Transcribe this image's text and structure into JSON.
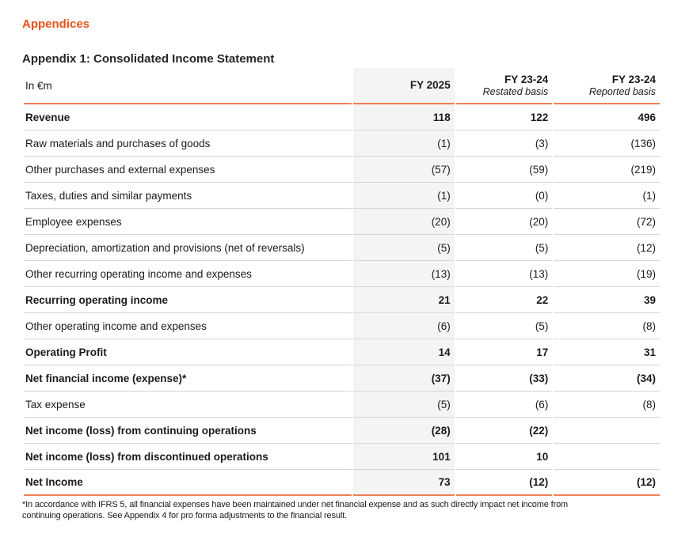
{
  "page": {
    "section_title": "Appendices",
    "table_title": "Appendix 1: Consolidated Income Statement"
  },
  "colors": {
    "accent_orange": "#E8511A",
    "rule_orange": "#EE7F55",
    "row_divider_gray": "#D6D6D6",
    "highlight_column_bg": "#F4F4F3"
  },
  "table": {
    "unit_label": "In €m",
    "columns": [
      {
        "label": "FY 2025",
        "sublabel": ""
      },
      {
        "label": "FY 23-24",
        "sublabel": "Restated basis"
      },
      {
        "label": "FY 23-24",
        "sublabel": "Reported basis"
      }
    ],
    "rows": [
      {
        "label": "Revenue",
        "fy2025": "118",
        "restated": "122",
        "reported": "496",
        "bold": true
      },
      {
        "label": "Raw materials and purchases of goods",
        "fy2025": "(1)",
        "restated": "(3)",
        "reported": "(136)",
        "bold": false
      },
      {
        "label": "Other purchases and external expenses",
        "fy2025": "(57)",
        "restated": "(59)",
        "reported": "(219)",
        "bold": false
      },
      {
        "label": "Taxes, duties and similar payments",
        "fy2025": "(1)",
        "restated": "(0)",
        "reported": "(1)",
        "bold": false
      },
      {
        "label": "Employee expenses",
        "fy2025": "(20)",
        "restated": "(20)",
        "reported": "(72)",
        "bold": false
      },
      {
        "label": "Depreciation, amortization and provisions (net of reversals)",
        "fy2025": "(5)",
        "restated": "(5)",
        "reported": "(12)",
        "bold": false
      },
      {
        "label": "Other recurring operating income and expenses",
        "fy2025": "(13)",
        "restated": "(13)",
        "reported": "(19)",
        "bold": false
      },
      {
        "label": "Recurring operating income",
        "fy2025": "21",
        "restated": "22",
        "reported": "39",
        "bold": true
      },
      {
        "label": "Other operating income and expenses",
        "fy2025": "(6)",
        "restated": "(5)",
        "reported": "(8)",
        "bold": false
      },
      {
        "label": "Operating Profit",
        "fy2025": "14",
        "restated": "17",
        "reported": "31",
        "bold": true
      },
      {
        "label": "Net financial income (expense)*",
        "fy2025": "(37)",
        "restated": "(33)",
        "reported": "(34)",
        "bold": true
      },
      {
        "label": "Tax expense",
        "fy2025": "(5)",
        "restated": "(6)",
        "reported": "(8)",
        "bold": false
      },
      {
        "label": "Net income (loss) from continuing operations",
        "fy2025": "(28)",
        "restated": "(22)",
        "reported": "",
        "bold": true
      },
      {
        "label": "Net income (loss) from discontinued operations",
        "fy2025": "101",
        "restated": "10",
        "reported": "",
        "bold": true
      },
      {
        "label": "Net Income",
        "fy2025": "73",
        "restated": "(12)",
        "reported": "(12)",
        "bold": true
      }
    ]
  },
  "footnote": {
    "line1": "*In accordance with IFRS 5, all financial expenses have been maintained under net financial expense and as such directly impact net income from",
    "line2": "continuing operations. See Appendix 4 for pro forma adjustments to the financial result."
  }
}
